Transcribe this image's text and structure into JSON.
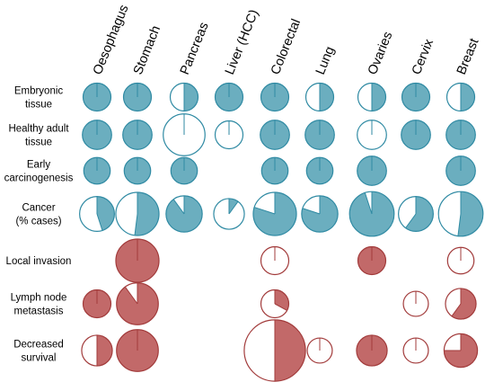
{
  "chart_data": {
    "type": "pie",
    "title": "",
    "columns": [
      "Oesophagus",
      "Stomach",
      "Pancreas",
      "Liver (HCC)",
      "Colorectal",
      "Lung",
      "Ovaries",
      "Cervix",
      "Breast"
    ],
    "row_labels": [
      [
        "Embryonic",
        "tissue"
      ],
      [
        "Healthy adult",
        "tissue"
      ],
      [
        "Early",
        "carcinogenesis"
      ],
      [
        "Cancer",
        "(% cases)"
      ],
      [
        "Local invasion"
      ],
      [
        "Lymph node",
        "metastasis"
      ],
      [
        "Decreased",
        "survival"
      ]
    ],
    "colors": {
      "teal_fill": "#6baebf",
      "teal_stroke": "#2f8aa3",
      "red_fill": "#c26969",
      "red_stroke": "#a23b3b",
      "empty_fill": "#ffffff"
    },
    "note": "Each cell is a pie; value = filled fraction (0-1), size = relative circle size (1 = standard), null = no pie shown.",
    "rows": [
      {
        "color": "teal",
        "cells": [
          {
            "value": 1,
            "size": 1
          },
          {
            "value": 1,
            "size": 1
          },
          {
            "value": 0.5,
            "size": 1
          },
          {
            "value": 1,
            "size": 1
          },
          {
            "value": 1,
            "size": 1
          },
          {
            "value": 0.5,
            "size": 1
          },
          {
            "value": 0.5,
            "size": 1
          },
          {
            "value": 1,
            "size": 1
          },
          {
            "value": 0.5,
            "size": 1
          }
        ]
      },
      {
        "color": "teal",
        "cells": [
          {
            "value": 1,
            "size": 1.05
          },
          {
            "value": 1,
            "size": 1.05
          },
          {
            "value": 0,
            "size": 1.5
          },
          {
            "value": 0,
            "size": 1.0
          },
          {
            "value": 1,
            "size": 1.05
          },
          {
            "value": 1,
            "size": 1.05
          },
          {
            "value": 0,
            "size": 1.05
          },
          {
            "value": 1,
            "size": 1.05
          },
          {
            "value": 1,
            "size": 1.05
          }
        ]
      },
      {
        "color": "teal",
        "cells": [
          {
            "value": 1,
            "size": 0.95
          },
          {
            "value": 1,
            "size": 0.95
          },
          {
            "value": 1,
            "size": 0.95
          },
          null,
          {
            "value": 1,
            "size": 0.95
          },
          {
            "value": 1,
            "size": 0.95
          },
          {
            "value": 1,
            "size": 1.05
          },
          null,
          {
            "value": 1,
            "size": 1.05
          }
        ]
      },
      {
        "color": "teal",
        "cells": [
          {
            "value": 0.45,
            "size": 1.25
          },
          {
            "value": 0.52,
            "size": 1.55
          },
          {
            "value": 0.9,
            "size": 1.3
          },
          {
            "value": 0.1,
            "size": 1.1
          },
          {
            "value": 0.8,
            "size": 1.55
          },
          {
            "value": 0.8,
            "size": 1.3
          },
          {
            "value": 0.95,
            "size": 1.6
          },
          {
            "value": 0.6,
            "size": 1.25
          },
          {
            "value": 0.52,
            "size": 1.6
          }
        ]
      },
      {
        "color": "red",
        "cells": [
          null,
          {
            "value": 1,
            "size": 1.55
          },
          null,
          null,
          {
            "value": 0,
            "size": 1.0
          },
          null,
          {
            "value": 1,
            "size": 1.0
          },
          null,
          {
            "value": 0,
            "size": 0.95
          }
        ]
      },
      {
        "color": "red",
        "cells": [
          {
            "value": 1,
            "size": 1.0
          },
          {
            "value": 0.9,
            "size": 1.5
          },
          null,
          null,
          {
            "value": 0.33,
            "size": 1.0
          },
          null,
          null,
          {
            "value": 0,
            "size": 0.9
          },
          {
            "value": 0.6,
            "size": 1.1
          }
        ]
      },
      {
        "color": "red",
        "cells": [
          {
            "value": 0.5,
            "size": 1.1
          },
          {
            "value": 1,
            "size": 1.5
          },
          null,
          null,
          {
            "value": 0.5,
            "size": 2.2
          },
          {
            "value": 0,
            "size": 0.9
          },
          {
            "value": 1,
            "size": 1.1
          },
          {
            "value": 0,
            "size": 0.9
          },
          {
            "value": 0.75,
            "size": 1.2
          }
        ]
      }
    ]
  }
}
